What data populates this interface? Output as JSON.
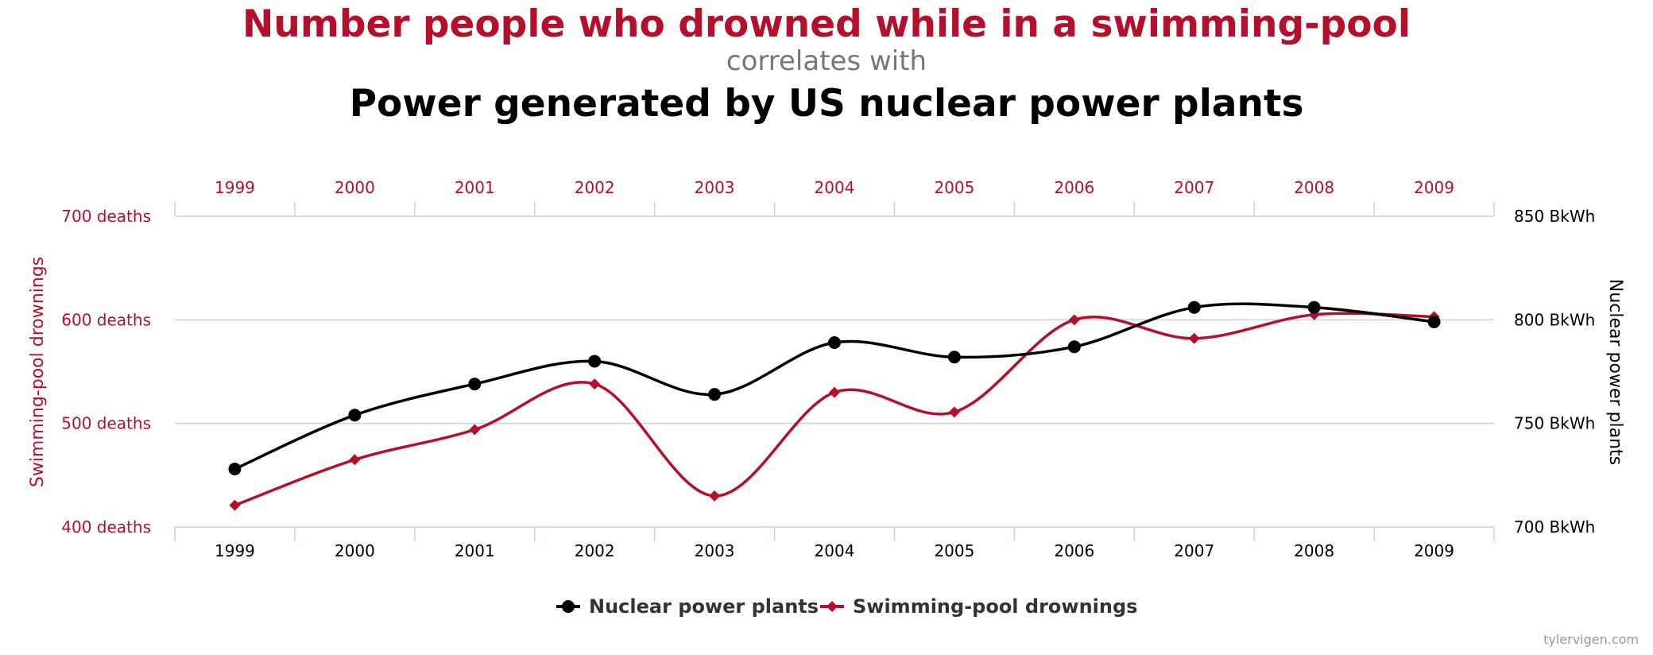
{
  "titles": {
    "title_main": "Number people who drowned while in a swimming-pool",
    "title_mid": "correlates with",
    "title_sub": "Power generated by US nuclear power plants"
  },
  "credit": "tylervigen.com",
  "colors": {
    "red": "#b5102b",
    "black": "#000000",
    "grid": "#c8d3df",
    "subtitle_gray": "#777777",
    "legend_text": "#333333",
    "credit_gray": "#999999"
  },
  "chart_data": {
    "type": "line",
    "x": [
      "1999",
      "2000",
      "2001",
      "2002",
      "2003",
      "2004",
      "2005",
      "2006",
      "2007",
      "2008",
      "2009"
    ],
    "top_tick_labels": [
      "1999",
      "2000",
      "2001",
      "2002",
      "2003",
      "2004",
      "2005",
      "2006",
      "2007",
      "2008",
      "2009"
    ],
    "bottom_tick_labels": [
      "1999",
      "2000",
      "2001",
      "2002",
      "2003",
      "2004",
      "2005",
      "2006",
      "2007",
      "2008",
      "2009"
    ],
    "left_axis": {
      "label": "Swimming-pool drownings",
      "range": [
        400,
        700
      ],
      "ticks": [
        {
          "value": 700,
          "label": "700 deaths"
        },
        {
          "value": 600,
          "label": "600 deaths"
        },
        {
          "value": 500,
          "label": "500 deaths"
        },
        {
          "value": 400,
          "label": "400 deaths"
        }
      ]
    },
    "right_axis": {
      "label": "Nuclear power plants",
      "range": [
        700,
        850
      ],
      "ticks": [
        {
          "value": 850,
          "label": "850 BkWh"
        },
        {
          "value": 800,
          "label": "800 BkWh"
        },
        {
          "value": 750,
          "label": "750 BkWh"
        },
        {
          "value": 700,
          "label": "700 BkWh"
        }
      ]
    },
    "grid": true,
    "legend_position": "bottom-center",
    "series": [
      {
        "name": "Nuclear power plants",
        "axis": "right",
        "marker": "circle",
        "color": "#000000",
        "values": [
          728,
          754,
          769,
          780,
          764,
          789,
          782,
          787,
          806,
          806,
          799
        ]
      },
      {
        "name": "Swimming-pool drownings",
        "axis": "left",
        "marker": "diamond",
        "color": "#b5102b",
        "values": [
          421,
          465,
          494,
          538,
          430,
          530,
          511,
          600,
          582,
          605,
          603
        ]
      }
    ]
  }
}
